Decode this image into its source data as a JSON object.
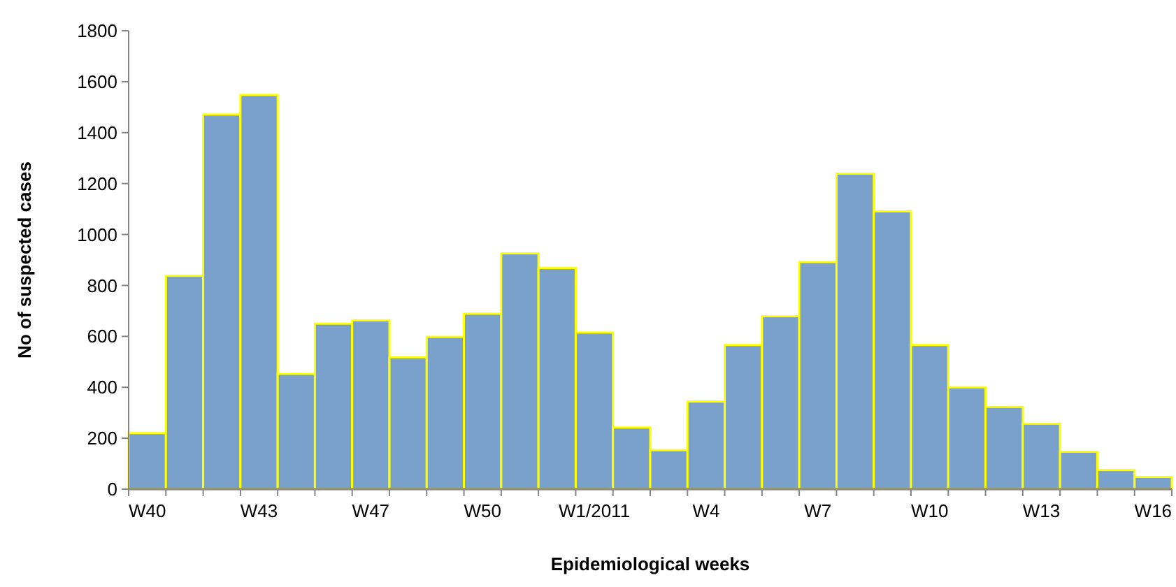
{
  "chart_data": {
    "type": "bar",
    "xlabel": "Epidemiological weeks",
    "ylabel": "No of suspected cases",
    "categories": [
      "W40",
      null,
      null,
      "W43",
      null,
      null,
      "W47",
      null,
      null,
      "W50",
      null,
      null,
      "W1/2011",
      null,
      null,
      "W4",
      null,
      null,
      "W7",
      null,
      null,
      "W10",
      null,
      null,
      "W13",
      null,
      null,
      "W16"
    ],
    "series": [
      {
        "color": "#7aa0cc",
        "values": [
          220,
          838,
          1471,
          1548,
          453,
          650,
          663,
          518,
          598,
          689,
          926,
          868,
          615,
          242,
          153,
          344,
          566,
          679,
          892,
          1239,
          1091,
          566,
          400,
          323,
          257,
          147,
          75,
          48
        ]
      }
    ],
    "ylim": [
      0,
      1800
    ],
    "yticks": [
      0,
      200,
      400,
      600,
      800,
      1000,
      1200,
      1400,
      1600,
      1800
    ],
    "grid": false
  }
}
